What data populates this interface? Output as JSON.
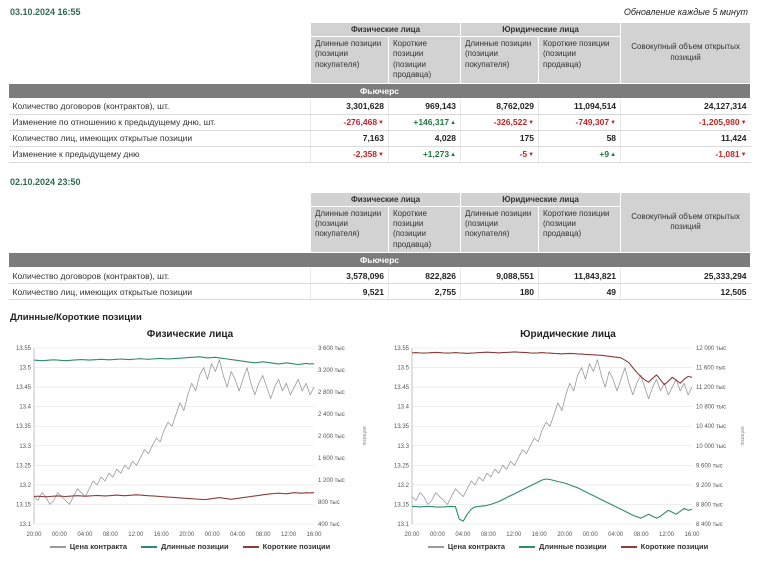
{
  "page": {
    "date1": "03.10.2024 16:55",
    "update_note": "Обновление каждые 5 минут",
    "date2": "02.10.2024 23:50",
    "section_title": "Длинные/Короткие позиции"
  },
  "table_headers": {
    "individuals": "Физические лица",
    "legal": "Юридические лица",
    "total": "Совокупный объем открытых позиций",
    "long": "Длинные позиции (позиции покупателя)",
    "short": "Короткие позиции (позиции продавца)",
    "band": "Фьючерс"
  },
  "table1": {
    "rows": [
      {
        "label": "Количество договоров (контрактов), шт.",
        "values": [
          "3,301,628",
          "969,143",
          "8,762,029",
          "11,094,514",
          "24,127,314"
        ]
      },
      {
        "label": "Изменение по отношению к предыдущему дню, шт.",
        "values": [
          "-276,468",
          "+146,317",
          "-326,522",
          "-749,307",
          "-1,205,980"
        ]
      },
      {
        "label": "Количество лиц, имеющих открытые позиции",
        "values": [
          "7,163",
          "4,028",
          "175",
          "58",
          "11,424"
        ]
      },
      {
        "label": "Изменение к предыдущему дню",
        "values": [
          "-2,358",
          "+1,273",
          "-5",
          "+9",
          "-1,081"
        ]
      }
    ]
  },
  "table2": {
    "rows": [
      {
        "label": "Количество договоров (контрактов), шт.",
        "values": [
          "3,578,096",
          "822,826",
          "9,088,551",
          "11,843,821",
          "25,333,294"
        ]
      },
      {
        "label": "Количество лиц, имеющих открытые позиции",
        "values": [
          "9,521",
          "2,755",
          "180",
          "49",
          "12,505"
        ]
      }
    ]
  },
  "legend": {
    "price": "Цена контракта",
    "long": "Длинные позиции",
    "short": "Короткие позиции"
  },
  "colors": {
    "price": "#9a9a9a",
    "long": "#2e8b72",
    "short": "#8e3b3b",
    "neg": "#c22525",
    "pos": "#1d7a3e"
  },
  "chart_data": [
    {
      "type": "line",
      "title": "Физические лица",
      "x_ticks": [
        "20:00",
        "00:00",
        "04:00",
        "08:00",
        "12:00",
        "16:00",
        "20:00",
        "00:00",
        "04:00",
        "08:00",
        "12:00",
        "16:00"
      ],
      "left_axis": {
        "min": 13.1,
        "max": 13.55,
        "step": 0.05
      },
      "right_axis": {
        "min": 400,
        "max": 3600,
        "step": 400,
        "suffix": " тыс",
        "label": "позиции"
      },
      "series": [
        {
          "name": "Цена контракта",
          "axis": "left",
          "color": "#9a9a9a",
          "values": [
            13.17,
            13.16,
            13.18,
            13.17,
            13.15,
            13.16,
            13.18,
            13.17,
            13.16,
            13.15,
            13.17,
            13.19,
            13.18,
            13.17,
            13.19,
            13.21,
            13.2,
            13.22,
            13.21,
            13.23,
            13.22,
            13.24,
            13.23,
            13.25,
            13.24,
            13.26,
            13.25,
            13.27,
            13.29,
            13.28,
            13.3,
            13.32,
            13.31,
            13.34,
            13.36,
            13.35,
            13.38,
            13.41,
            13.39,
            13.43,
            13.46,
            13.44,
            13.48,
            13.5,
            13.47,
            13.51,
            13.49,
            13.52,
            13.48,
            13.45,
            13.49,
            13.47,
            13.44,
            13.47,
            13.5,
            13.46,
            13.43,
            13.46,
            13.48,
            13.45,
            13.42,
            13.45,
            13.47,
            13.44,
            13.46,
            13.43,
            13.45,
            13.47,
            13.44,
            13.46,
            13.43,
            13.45
          ]
        },
        {
          "name": "Длинные позиции",
          "axis": "right",
          "color": "#2e8b72",
          "values": [
            3380,
            3375,
            3370,
            3375,
            3380,
            3385,
            3380,
            3375,
            3370,
            3375,
            3380,
            3385,
            3390,
            3385,
            3380,
            3385,
            3390,
            3395,
            3390,
            3385,
            3390,
            3395,
            3400,
            3395,
            3390,
            3395,
            3400,
            3405,
            3400,
            3395,
            3400,
            3405,
            3410,
            3405,
            3400,
            3405,
            3410,
            3415,
            3420,
            3425,
            3430,
            3435,
            3440,
            3430,
            3420,
            3425,
            3430,
            3420,
            3410,
            3400,
            3390,
            3380,
            3370,
            3360,
            3350,
            3340,
            3330,
            3340,
            3350,
            3340,
            3330,
            3320,
            3310,
            3320,
            3330,
            3320,
            3310,
            3300,
            3310,
            3320,
            3310,
            3315
          ]
        },
        {
          "name": "Короткие позиции",
          "axis": "right",
          "color": "#8e3b3b",
          "values": [
            900,
            905,
            900,
            895,
            900,
            905,
            910,
            905,
            900,
            905,
            910,
            915,
            910,
            905,
            910,
            915,
            920,
            915,
            910,
            915,
            920,
            925,
            920,
            915,
            920,
            925,
            930,
            925,
            920,
            915,
            910,
            905,
            900,
            895,
            890,
            885,
            880,
            875,
            870,
            865,
            860,
            855,
            850,
            845,
            850,
            860,
            870,
            880,
            870,
            860,
            850,
            860,
            870,
            880,
            890,
            900,
            910,
            920,
            930,
            940,
            950,
            955,
            960,
            955,
            950,
            960,
            970,
            965,
            960,
            970,
            965,
            970
          ]
        }
      ]
    },
    {
      "type": "line",
      "title": "Юридические лица",
      "x_ticks": [
        "20:00",
        "00:00",
        "04:00",
        "08:00",
        "12:00",
        "16:00",
        "20:00",
        "00:00",
        "04:00",
        "08:00",
        "12:00",
        "16:00"
      ],
      "left_axis": {
        "min": 13.1,
        "max": 13.55,
        "step": 0.05
      },
      "right_axis": {
        "min": 8400,
        "max": 12000,
        "step": 400,
        "suffix": " тыс",
        "label": "позиции"
      },
      "series": [
        {
          "name": "Цена контракта",
          "axis": "left",
          "color": "#9a9a9a",
          "values": [
            13.17,
            13.16,
            13.18,
            13.17,
            13.15,
            13.16,
            13.18,
            13.17,
            13.16,
            13.15,
            13.17,
            13.19,
            13.18,
            13.17,
            13.19,
            13.21,
            13.2,
            13.22,
            13.21,
            13.23,
            13.22,
            13.24,
            13.23,
            13.25,
            13.24,
            13.26,
            13.25,
            13.27,
            13.29,
            13.28,
            13.3,
            13.32,
            13.31,
            13.34,
            13.36,
            13.35,
            13.38,
            13.41,
            13.39,
            13.43,
            13.46,
            13.44,
            13.48,
            13.5,
            13.47,
            13.51,
            13.49,
            13.52,
            13.48,
            13.45,
            13.49,
            13.47,
            13.44,
            13.47,
            13.5,
            13.46,
            13.43,
            13.46,
            13.48,
            13.45,
            13.42,
            13.45,
            13.47,
            13.44,
            13.46,
            13.43,
            13.45,
            13.47,
            13.44,
            13.46,
            13.43,
            13.45
          ]
        },
        {
          "name": "Длинные позиции",
          "axis": "right",
          "color": "#2e8b72",
          "values": [
            8760,
            8755,
            8750,
            8755,
            8760,
            8755,
            8750,
            8745,
            8750,
            8755,
            8760,
            8755,
            8500,
            8460,
            8600,
            8700,
            8750,
            8760,
            8770,
            8780,
            8800,
            8830,
            8860,
            8900,
            8940,
            8980,
            9020,
            9060,
            9100,
            9140,
            9180,
            9220,
            9260,
            9300,
            9320,
            9310,
            9290,
            9270,
            9250,
            9230,
            9200,
            9170,
            9140,
            9100,
            9060,
            9020,
            8980,
            8940,
            8900,
            8860,
            8820,
            8780,
            8740,
            8700,
            8660,
            8620,
            8580,
            8550,
            8520,
            8560,
            8600,
            8560,
            8520,
            8560,
            8620,
            8680,
            8640,
            8600,
            8660,
            8720,
            8680,
            8700
          ]
        },
        {
          "name": "Короткие позиции",
          "axis": "right",
          "color": "#8e3b3b",
          "values": [
            11900,
            11905,
            11900,
            11895,
            11900,
            11905,
            11910,
            11905,
            11900,
            11895,
            11900,
            11905,
            11900,
            11895,
            11890,
            11895,
            11900,
            11905,
            11910,
            11915,
            11910,
            11905,
            11900,
            11905,
            11910,
            11915,
            11920,
            11915,
            11910,
            11905,
            11900,
            11895,
            11900,
            11905,
            11900,
            11895,
            11890,
            11885,
            11880,
            11885,
            11890,
            11885,
            11880,
            11875,
            11870,
            11865,
            11860,
            11855,
            11850,
            11840,
            11830,
            11820,
            11810,
            11800,
            11750,
            11700,
            11600,
            11500,
            11420,
            11350,
            11300,
            11380,
            11450,
            11350,
            11250,
            11320,
            11400,
            11340,
            11280,
            11360,
            11420,
            11400
          ]
        }
      ]
    }
  ]
}
